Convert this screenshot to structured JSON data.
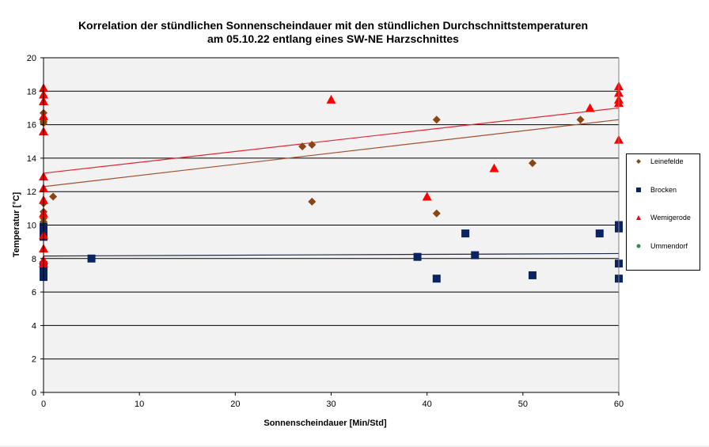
{
  "chart_data": {
    "type": "scatter",
    "title_lines": [
      "Korrelation der stündlichen Sonnenscheindauer mit den stündlichen Durchschnittstemperaturen",
      "am 05.10.22 entlang eines SW-NE Harzschnittes"
    ],
    "xlabel": "Sonnenscheindauer [Min/Std]",
    "ylabel": "Temperatur [°C]",
    "xlim": [
      0,
      60
    ],
    "ylim": [
      0,
      20
    ],
    "xticks": [
      "0",
      "10",
      "20",
      "30",
      "40",
      "50",
      "60"
    ],
    "yticks": [
      "0",
      "2",
      "4",
      "6",
      "8",
      "10",
      "12",
      "14",
      "16",
      "18",
      "20"
    ],
    "grid": "horizontal",
    "plot_background": "#f2f2f2",
    "legend_position": "right",
    "series": [
      {
        "name": "Leinefelde",
        "marker": "diamond",
        "color": "#8b4513",
        "points": [
          [
            0,
            16.7
          ],
          [
            0,
            16.4
          ],
          [
            0,
            16.2
          ],
          [
            0,
            16.1
          ],
          [
            0,
            11.3
          ],
          [
            0,
            10.8
          ],
          [
            0,
            10.4
          ],
          [
            0,
            10.2
          ],
          [
            1,
            11.7
          ],
          [
            27,
            14.7
          ],
          [
            28,
            14.8
          ],
          [
            28,
            11.4
          ],
          [
            41,
            16.3
          ],
          [
            41,
            10.7
          ],
          [
            51,
            13.7
          ],
          [
            56,
            16.3
          ]
        ],
        "trendline": {
          "color": "#a0522d",
          "start": [
            0,
            12.3
          ],
          "end": [
            60,
            16.3
          ]
        }
      },
      {
        "name": "Brocken",
        "marker": "square",
        "color": "#0a2463",
        "points": [
          [
            0,
            9.9
          ],
          [
            0,
            9.6
          ],
          [
            0,
            9.3
          ],
          [
            0,
            7.6
          ],
          [
            0,
            7.3
          ],
          [
            0,
            7.0
          ],
          [
            0,
            6.9
          ],
          [
            5,
            8.0
          ],
          [
            39,
            8.1
          ],
          [
            41,
            6.8
          ],
          [
            44,
            9.5
          ],
          [
            45,
            8.2
          ],
          [
            51,
            7.0
          ],
          [
            58,
            9.5
          ],
          [
            60,
            10.0
          ],
          [
            60,
            9.8
          ],
          [
            60,
            7.7
          ],
          [
            60,
            6.8
          ]
        ],
        "trendline": {
          "color": "#1f2a44",
          "start": [
            0,
            8.15
          ],
          "end": [
            60,
            8.3
          ]
        }
      },
      {
        "name": "Wernigerode",
        "legend_label": "Wemigerode",
        "marker": "triangle",
        "color": "#ff0000",
        "points": [
          [
            0,
            18.2
          ],
          [
            0,
            17.8
          ],
          [
            0,
            17.4
          ],
          [
            0,
            16.5
          ],
          [
            0,
            15.6
          ],
          [
            0,
            12.9
          ],
          [
            0,
            12.2
          ],
          [
            0,
            11.5
          ],
          [
            0,
            10.7
          ],
          [
            0,
            9.4
          ],
          [
            0,
            8.6
          ],
          [
            0,
            7.9
          ],
          [
            0,
            7.7
          ],
          [
            30,
            17.5
          ],
          [
            40,
            11.7
          ],
          [
            47,
            13.4
          ],
          [
            57,
            17.0
          ],
          [
            60,
            18.3
          ],
          [
            60,
            17.9
          ],
          [
            60,
            17.5
          ],
          [
            60,
            17.3
          ],
          [
            60,
            15.1
          ]
        ],
        "trendline": {
          "color": "#e32636",
          "start": [
            0,
            13.1
          ],
          "end": [
            60,
            17.0
          ]
        }
      },
      {
        "name": "Ummendorf",
        "marker": "circle",
        "color": "#2e8b57",
        "points": [],
        "trendline": null
      }
    ]
  }
}
